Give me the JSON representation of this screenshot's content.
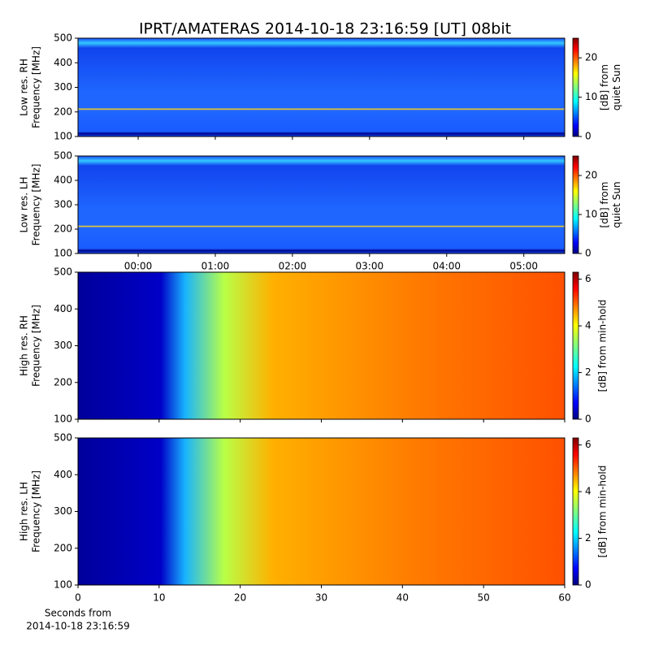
{
  "title": "IPRT/AMATERAS 2014-10-18 23:16:59 [UT]   08bit",
  "chart_data": [
    {
      "type": "heatmap",
      "ylabel": [
        "Low res. RH",
        "Frequency [MHz]"
      ],
      "ylim": [
        100,
        500
      ],
      "yticks": [
        100,
        200,
        300,
        400,
        500
      ],
      "xlim": [
        -0.78,
        5.53
      ],
      "colorbar_label": [
        "[dB] from",
        "quiet Sun"
      ],
      "clim": [
        0,
        25
      ],
      "cticks": [
        0,
        10,
        20
      ],
      "colormap": "jet"
    },
    {
      "type": "heatmap",
      "ylabel": [
        "Low res. LH",
        "Frequency [MHz]"
      ],
      "ylim": [
        100,
        500
      ],
      "yticks": [
        100,
        200,
        300,
        400,
        500
      ],
      "xlim": [
        -0.78,
        5.53
      ],
      "xticks": [
        {
          "value": 0,
          "label": "00:00"
        },
        {
          "value": 1,
          "label": "01:00"
        },
        {
          "value": 2,
          "label": "02:00"
        },
        {
          "value": 3,
          "label": "03:00"
        },
        {
          "value": 4,
          "label": "04:00"
        },
        {
          "value": 5,
          "label": "05:00"
        }
      ],
      "colorbar_label": [
        "[dB] from",
        "quiet Sun"
      ],
      "clim": [
        0,
        25
      ],
      "cticks": [
        0,
        10,
        20
      ],
      "colormap": "jet"
    },
    {
      "type": "heatmap",
      "ylabel": [
        "High res. RH",
        "Frequency [MHz]"
      ],
      "ylim": [
        100,
        500
      ],
      "yticks": [
        100,
        200,
        300,
        400,
        500
      ],
      "xlim": [
        0,
        60
      ],
      "colorbar_label": [
        "[dB] from min-hold"
      ],
      "clim": [
        0,
        6.3
      ],
      "cticks": [
        0,
        2,
        4,
        6
      ],
      "colormap": "jet"
    },
    {
      "type": "heatmap",
      "ylabel": [
        "High res. LH",
        "Frequency [MHz]"
      ],
      "ylim": [
        100,
        500
      ],
      "yticks": [
        100,
        200,
        300,
        400,
        500
      ],
      "xlim": [
        0,
        60
      ],
      "xticks": [
        0,
        10,
        20,
        30,
        40,
        50,
        60
      ],
      "xlabel": [
        "Seconds from",
        "2014-10-18 23:16:59"
      ],
      "colorbar_label": [
        "[dB] from min-hold"
      ],
      "clim": [
        0,
        6.3
      ],
      "cticks": [
        0,
        2,
        4,
        6
      ],
      "colormap": "jet"
    }
  ]
}
